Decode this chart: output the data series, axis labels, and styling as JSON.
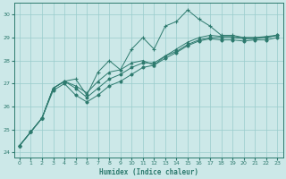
{
  "xlabel": "Humidex (Indice chaleur)",
  "bg_color": "#cce8e8",
  "grid_color": "#99cccc",
  "line_color": "#2d7a6e",
  "xlim": [
    -0.5,
    23.5
  ],
  "ylim": [
    23.8,
    30.5
  ],
  "yticks": [
    24,
    25,
    26,
    27,
    28,
    29,
    30
  ],
  "xticks": [
    0,
    1,
    2,
    3,
    4,
    5,
    6,
    7,
    8,
    9,
    10,
    11,
    12,
    13,
    14,
    15,
    16,
    17,
    18,
    19,
    20,
    21,
    22,
    23
  ],
  "line1": [
    24.3,
    24.9,
    25.5,
    26.8,
    27.1,
    27.2,
    26.5,
    27.5,
    28.0,
    27.6,
    28.5,
    29.0,
    28.5,
    29.5,
    29.7,
    30.2,
    29.8,
    29.5,
    29.1,
    29.1,
    29.0,
    29.0,
    29.05,
    29.1
  ],
  "line2": [
    24.3,
    24.9,
    25.5,
    26.8,
    27.1,
    26.9,
    26.6,
    27.1,
    27.5,
    27.6,
    27.9,
    28.0,
    27.8,
    28.2,
    28.5,
    28.8,
    29.0,
    29.1,
    29.05,
    29.05,
    29.0,
    29.0,
    29.0,
    29.1
  ],
  "line3": [
    24.3,
    24.9,
    25.5,
    26.8,
    27.1,
    26.8,
    26.4,
    26.8,
    27.2,
    27.4,
    27.7,
    27.9,
    27.9,
    28.2,
    28.4,
    28.7,
    28.9,
    29.0,
    29.0,
    29.0,
    28.95,
    28.95,
    29.0,
    29.1
  ],
  "line4": [
    24.3,
    24.9,
    25.5,
    26.7,
    27.0,
    26.5,
    26.2,
    26.5,
    26.9,
    27.1,
    27.4,
    27.7,
    27.8,
    28.1,
    28.35,
    28.65,
    28.85,
    28.95,
    28.9,
    28.9,
    28.85,
    28.9,
    28.9,
    29.0
  ]
}
